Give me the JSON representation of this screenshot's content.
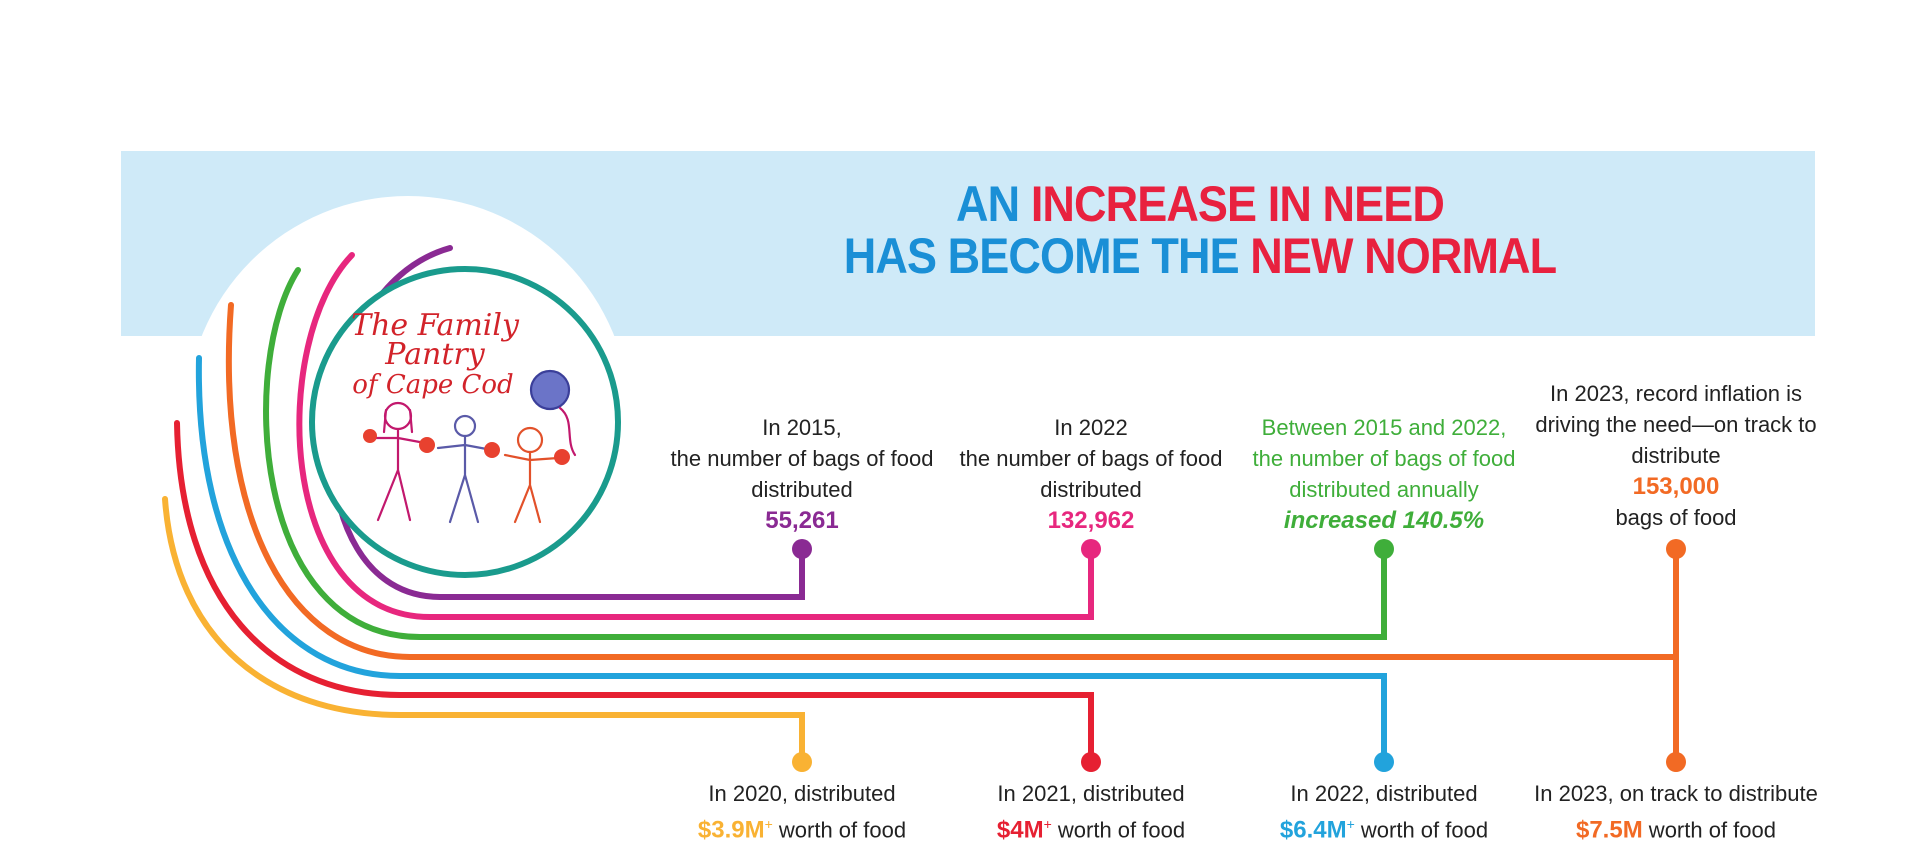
{
  "title": {
    "line1_a": "AN ",
    "line1_b": "INCREASE IN NEED",
    "line2_a": "HAS BECOME THE ",
    "line2_b": "NEW NORMAL"
  },
  "logo": {
    "line1": "The Family",
    "line2": "Pantry",
    "line3": "of Cape Cod"
  },
  "colors": {
    "purple": "#8a2a93",
    "magenta": "#e7277e",
    "green": "#3fae3a",
    "orange": "#f26a24",
    "blue": "#22a3dc",
    "red": "#e62032",
    "gold": "#f9b233",
    "teal": "#1a9b8d",
    "title_blue": "#1a8fd6",
    "title_red": "#e8213f"
  },
  "top_notes": [
    {
      "lines": [
        "In 2015,",
        "the number of bags of food",
        "distributed"
      ],
      "value": "55,261",
      "color": "#8a2a93"
    },
    {
      "lines": [
        "In 2022",
        "the number of bags of food",
        "distributed"
      ],
      "value": "132,962",
      "color": "#e7277e"
    },
    {
      "lines": [
        "Between 2015 and 2022,",
        "the number of  bags of food",
        "distributed annually"
      ],
      "value": "increased 140.5%",
      "color": "#3fae3a"
    },
    {
      "lines": [
        "In 2023, record inflation is",
        "driving the need—on track to",
        "distribute"
      ],
      "value": "153,000",
      "after": "bags of food",
      "color": "#f26a24"
    }
  ],
  "bottom_notes": [
    {
      "line1": "In 2020, distributed",
      "amount": "$3.9M",
      "plus": "+",
      "suffix": " worth of food",
      "color": "#f9b233"
    },
    {
      "line1": "In 2021, distributed",
      "amount": "$4M",
      "plus": "+",
      "suffix": " worth of food",
      "color": "#e62032"
    },
    {
      "line1": "In 2022, distributed",
      "amount": "$6.4M",
      "plus": "+",
      "suffix": " worth of food",
      "color": "#22a3dc"
    },
    {
      "line1": "In 2023, on track to distribute",
      "amount": "$7.5M",
      "plus": "",
      "suffix": " worth of food",
      "color": "#f26a24"
    }
  ]
}
